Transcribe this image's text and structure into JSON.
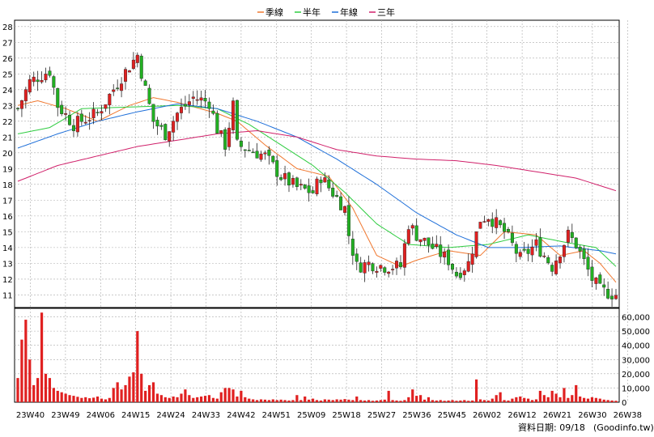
{
  "chart_data": [
    {
      "type": "candlestick",
      "title": "",
      "legend": {
        "placement": "top-center",
        "items": [
          {
            "label": "季線",
            "color": "#f07830"
          },
          {
            "label": "半年",
            "color": "#2ecc40"
          },
          {
            "label": "年線",
            "color": "#1e6fd9"
          },
          {
            "label": "三年",
            "color": "#d0206a"
          }
        ]
      },
      "ylim": [
        11,
        28
      ],
      "yticks": [
        11,
        12,
        13,
        14,
        15,
        16,
        17,
        18,
        19,
        20,
        21,
        22,
        23,
        24,
        25,
        26,
        27,
        28
      ],
      "xticks": [
        "23W40",
        "23W49",
        "24W06",
        "24W15",
        "24W24",
        "24W33",
        "24W42",
        "24W51",
        "25W09",
        "25W18",
        "25W27",
        "25W36",
        "25W45",
        "26W02",
        "26W12",
        "26W21",
        "26W30",
        "26W38"
      ],
      "grid": true,
      "up_color": "#e02020",
      "down_color": "#22b022",
      "price_anchors": [
        [
          0,
          22.8
        ],
        [
          3,
          24.5
        ],
        [
          5,
          24.8
        ],
        [
          8,
          25.2
        ],
        [
          10,
          23.0
        ],
        [
          14,
          21.8
        ],
        [
          20,
          22.5
        ],
        [
          26,
          24.8
        ],
        [
          30,
          26.2
        ],
        [
          32,
          24.0
        ],
        [
          34,
          22.0
        ],
        [
          37,
          21.2
        ],
        [
          40,
          22.5
        ],
        [
          44,
          23.5
        ],
        [
          48,
          23.2
        ],
        [
          50,
          21.5
        ],
        [
          52,
          20.5
        ],
        [
          54,
          23.0
        ],
        [
          55,
          20.5
        ],
        [
          58,
          20.2
        ],
        [
          62,
          19.8
        ],
        [
          66,
          18.5
        ],
        [
          70,
          17.8
        ],
        [
          74,
          17.5
        ],
        [
          76,
          18.5
        ],
        [
          78,
          17.8
        ],
        [
          82,
          16.5
        ],
        [
          83,
          14.8
        ],
        [
          85,
          12.8
        ],
        [
          88,
          13.0
        ],
        [
          92,
          12.8
        ],
        [
          96,
          12.8
        ],
        [
          98,
          15.5
        ],
        [
          100,
          14.8
        ],
        [
          104,
          14.0
        ],
        [
          108,
          13.2
        ],
        [
          110,
          12.3
        ],
        [
          113,
          13.0
        ],
        [
          116,
          15.8
        ],
        [
          118,
          16.0
        ],
        [
          122,
          15.0
        ],
        [
          126,
          13.3
        ],
        [
          130,
          14.2
        ],
        [
          134,
          12.8
        ],
        [
          138,
          14.8
        ],
        [
          140,
          14.2
        ],
        [
          144,
          12.0
        ],
        [
          146,
          11.3
        ],
        [
          150,
          11.0
        ]
      ],
      "ma_quarter": [
        [
          0,
          23.0
        ],
        [
          5,
          23.3
        ],
        [
          12,
          22.8
        ],
        [
          20,
          22.0
        ],
        [
          28,
          23.0
        ],
        [
          34,
          23.5
        ],
        [
          40,
          23.2
        ],
        [
          50,
          22.5
        ],
        [
          55,
          22.0
        ],
        [
          62,
          20.5
        ],
        [
          70,
          19.0
        ],
        [
          78,
          18.5
        ],
        [
          84,
          16.5
        ],
        [
          90,
          13.5
        ],
        [
          96,
          12.8
        ],
        [
          100,
          13.2
        ],
        [
          108,
          13.8
        ],
        [
          116,
          13.5
        ],
        [
          122,
          15.0
        ],
        [
          130,
          14.8
        ],
        [
          136,
          13.5
        ],
        [
          142,
          13.8
        ],
        [
          146,
          13.0
        ],
        [
          150,
          11.8
        ]
      ],
      "ma_half": [
        [
          0,
          21.2
        ],
        [
          8,
          21.6
        ],
        [
          16,
          22.8
        ],
        [
          28,
          22.9
        ],
        [
          40,
          23.0
        ],
        [
          50,
          22.8
        ],
        [
          58,
          21.8
        ],
        [
          66,
          20.5
        ],
        [
          74,
          19.2
        ],
        [
          82,
          17.5
        ],
        [
          90,
          15.5
        ],
        [
          98,
          14.2
        ],
        [
          108,
          14.0
        ],
        [
          118,
          14.2
        ],
        [
          128,
          14.8
        ],
        [
          138,
          14.3
        ],
        [
          145,
          14.0
        ],
        [
          150,
          12.8
        ]
      ],
      "ma_year": [
        [
          0,
          20.3
        ],
        [
          10,
          21.2
        ],
        [
          20,
          22.0
        ],
        [
          30,
          22.6
        ],
        [
          40,
          23.1
        ],
        [
          50,
          22.8
        ],
        [
          60,
          22.0
        ],
        [
          70,
          21.0
        ],
        [
          80,
          19.6
        ],
        [
          90,
          18.0
        ],
        [
          100,
          16.2
        ],
        [
          110,
          14.8
        ],
        [
          118,
          14.0
        ],
        [
          126,
          14.0
        ],
        [
          136,
          14.1
        ],
        [
          146,
          13.8
        ],
        [
          150,
          13.6
        ]
      ],
      "ma_three": [
        [
          0,
          18.2
        ],
        [
          10,
          19.2
        ],
        [
          20,
          19.8
        ],
        [
          30,
          20.4
        ],
        [
          40,
          20.8
        ],
        [
          50,
          21.2
        ],
        [
          60,
          21.4
        ],
        [
          70,
          21.0
        ],
        [
          80,
          20.2
        ],
        [
          90,
          19.8
        ],
        [
          100,
          19.6
        ],
        [
          110,
          19.5
        ],
        [
          120,
          19.2
        ],
        [
          130,
          18.8
        ],
        [
          140,
          18.4
        ],
        [
          150,
          17.6
        ]
      ]
    },
    {
      "type": "bar",
      "title": "",
      "ylim": [
        0,
        60000
      ],
      "ytick_labels": [
        "60,000",
        "50,000",
        "40,000",
        "30,000",
        "20,000",
        "10,000",
        "0"
      ],
      "yticks": [
        60000,
        50000,
        40000,
        30000,
        20000,
        10000,
        0
      ],
      "grid": true,
      "bar_color": "#e02020",
      "values": [
        17000,
        44000,
        58000,
        30000,
        12000,
        17000,
        63000,
        20000,
        17000,
        10000,
        8000,
        7000,
        6000,
        5000,
        4500,
        3800,
        3000,
        3500,
        2800,
        3200,
        4000,
        2500,
        2000,
        3000,
        10000,
        14000,
        9000,
        12000,
        18000,
        21000,
        50000,
        20000,
        8000,
        12000,
        14000,
        6000,
        5000,
        3500,
        3000,
        4000,
        3500,
        6000,
        9000,
        5000,
        3000,
        3500,
        4000,
        4500,
        5000,
        3000,
        2500,
        7000,
        10000,
        10000,
        9000,
        4000,
        8000,
        3500,
        2500,
        2000,
        1500,
        2000,
        1800,
        1500,
        2000,
        1500,
        1800,
        1500,
        1200,
        1500,
        5000,
        1500,
        4000,
        1800,
        2500,
        1500,
        1200,
        2000,
        1800,
        1500,
        2000,
        1800,
        2200,
        1800,
        1500,
        4000,
        1500,
        1200,
        1500,
        1000,
        1200,
        1500,
        1800,
        8000,
        1500,
        1200,
        1000,
        1500,
        3500,
        9000,
        4500,
        5000,
        1800,
        3500,
        1500,
        1200,
        1500,
        1000,
        1200,
        1500,
        1000,
        1200,
        1500,
        1000,
        1200,
        16000,
        2000,
        1500,
        1200,
        2500,
        5000,
        7000,
        1500,
        1200,
        2500,
        3500,
        4000,
        3000,
        2500,
        1500,
        2000,
        8000,
        5000,
        3500,
        8000,
        6000,
        3500,
        10000,
        3000,
        5000,
        12000,
        4000,
        3000,
        2500,
        3500,
        3000,
        2500,
        1800,
        1500,
        1200,
        1000
      ]
    }
  ],
  "footer": {
    "date_label": "資料日期: 09/18",
    "source": "(Goodinfo.tw)"
  }
}
